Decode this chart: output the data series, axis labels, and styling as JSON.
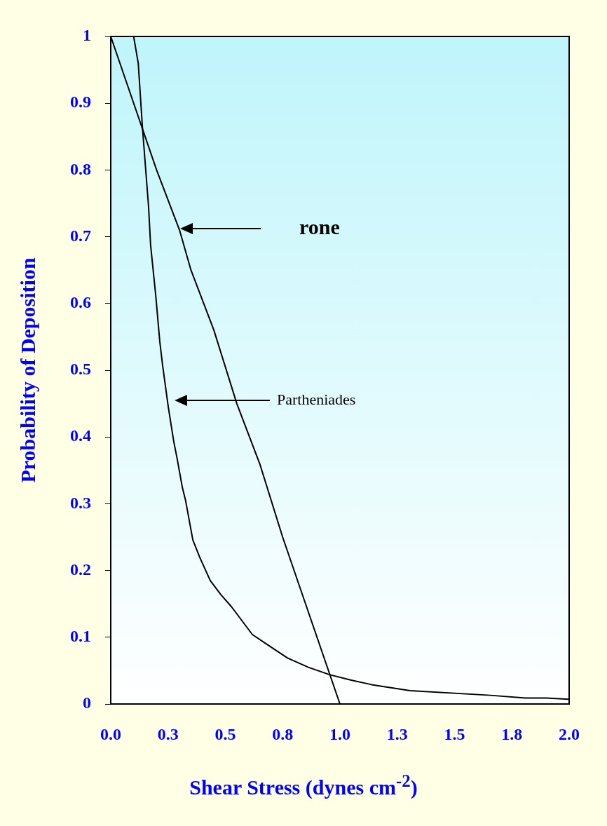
{
  "chart_data": {
    "type": "line",
    "xlabel": "Shear Stress (dynes cm$^{-2}$)",
    "ylabel": "Probability of Deposition",
    "xlim": [
      0,
      2
    ],
    "ylim": [
      0,
      1
    ],
    "xticks": [
      {
        "value": 0,
        "label": "0.0"
      },
      {
        "value": 0.25,
        "label": "0.3"
      },
      {
        "value": 0.5,
        "label": "0.5"
      },
      {
        "value": 0.75,
        "label": "0.8"
      },
      {
        "value": 1,
        "label": "1.0"
      },
      {
        "value": 1.25,
        "label": "1.3"
      },
      {
        "value": 1.5,
        "label": "1.5"
      },
      {
        "value": 1.75,
        "label": "1.8"
      },
      {
        "value": 2,
        "label": "2.0"
      }
    ],
    "yticks": [
      0,
      0.1,
      0.2,
      0.3,
      0.4,
      0.5,
      0.6,
      0.7,
      0.8,
      0.9,
      1
    ],
    "grid": false,
    "legend": false,
    "marker": "none",
    "line_style": "solid",
    "series": [
      {
        "color": "#000000",
        "x": [
          0,
          0.1,
          0.2,
          0.3,
          0.35,
          0.45,
          0.55,
          0.65,
          0.75,
          0.85,
          1.0
        ],
        "values": [
          1,
          0.9,
          0.8,
          0.71,
          0.65,
          0.56,
          0.45,
          0.36,
          0.25,
          0.15,
          0
        ]
      },
      {
        "color": "#000000",
        "x": [
          0,
          0.1,
          0.12,
          0.138,
          0.165,
          0.174,
          0.196,
          0.214,
          0.226,
          0.251,
          0.275,
          0.29,
          0.312,
          0.327,
          0.358,
          0.388,
          0.434,
          0.48,
          0.526,
          0.572,
          0.618,
          0.679,
          0.771,
          0.862,
          0.954,
          1.046,
          1.138,
          1.306,
          1.657,
          1.81,
          1.9,
          2.0
        ],
        "values": [
          1,
          1,
          0.96,
          0.865,
          0.745,
          0.687,
          0.613,
          0.543,
          0.508,
          0.445,
          0.393,
          0.367,
          0.325,
          0.304,
          0.246,
          0.22,
          0.185,
          0.164,
          0.146,
          0.125,
          0.104,
          0.09,
          0.069,
          0.055,
          0.044,
          0.036,
          0.029,
          0.02,
          0.013,
          0.009,
          0.009,
          0.007
        ]
      }
    ],
    "annotations": [
      "rone",
      "Partheniades"
    ]
  }
}
